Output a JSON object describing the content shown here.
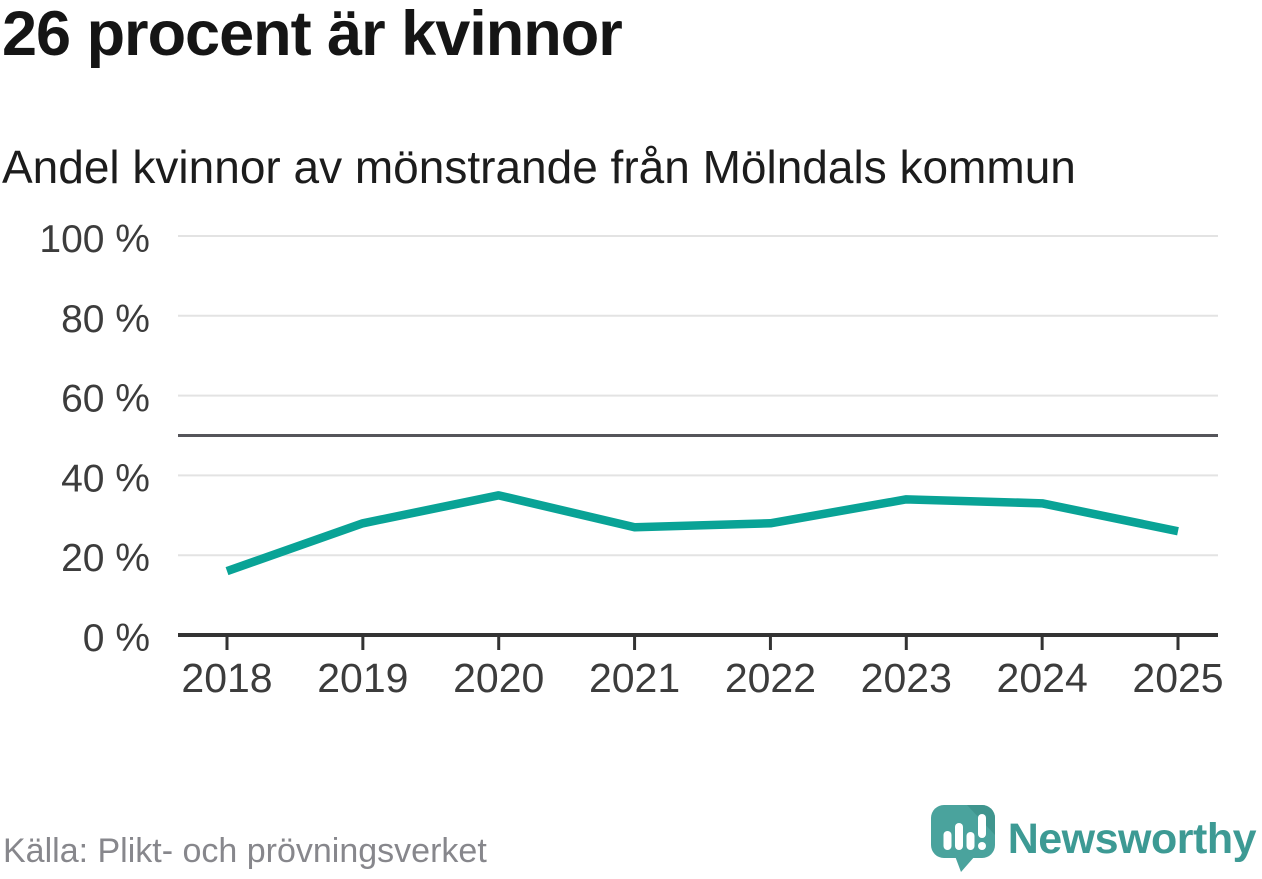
{
  "header": {
    "title": "26 procent är kvinnor",
    "subtitle": "Andel kvinnor av mönstrande från Mölndals kommun"
  },
  "chart_data": {
    "type": "line",
    "title": "26 procent är kvinnor",
    "subtitle": "Andel kvinnor av mönstrande från Mölndals kommun",
    "x": [
      2018,
      2019,
      2020,
      2021,
      2022,
      2023,
      2024,
      2025
    ],
    "series": [
      {
        "name": "Andel kvinnor av mönstrande",
        "values": [
          16,
          28,
          35,
          27,
          28,
          34,
          33,
          26
        ]
      }
    ],
    "unit": "%",
    "ylim": [
      0,
      100
    ],
    "yticks": [
      0,
      20,
      40,
      60,
      80,
      100
    ],
    "ytick_suffix": " %",
    "reference_line": 50,
    "grid": true,
    "legend": "none",
    "line_color": "#09a396",
    "grid_color": "#e3e3e3",
    "axis_color": "#333333",
    "reference_color": "#55555a",
    "label_color": "#3c3c3c"
  },
  "footer": {
    "source": "Källa: Plikt- och prövningsverket",
    "logo_text": "Newsworthy",
    "logo_color": "#3d9a94",
    "logo_icon": "newsworthy-speech-bubble-bar-chart-icon"
  }
}
